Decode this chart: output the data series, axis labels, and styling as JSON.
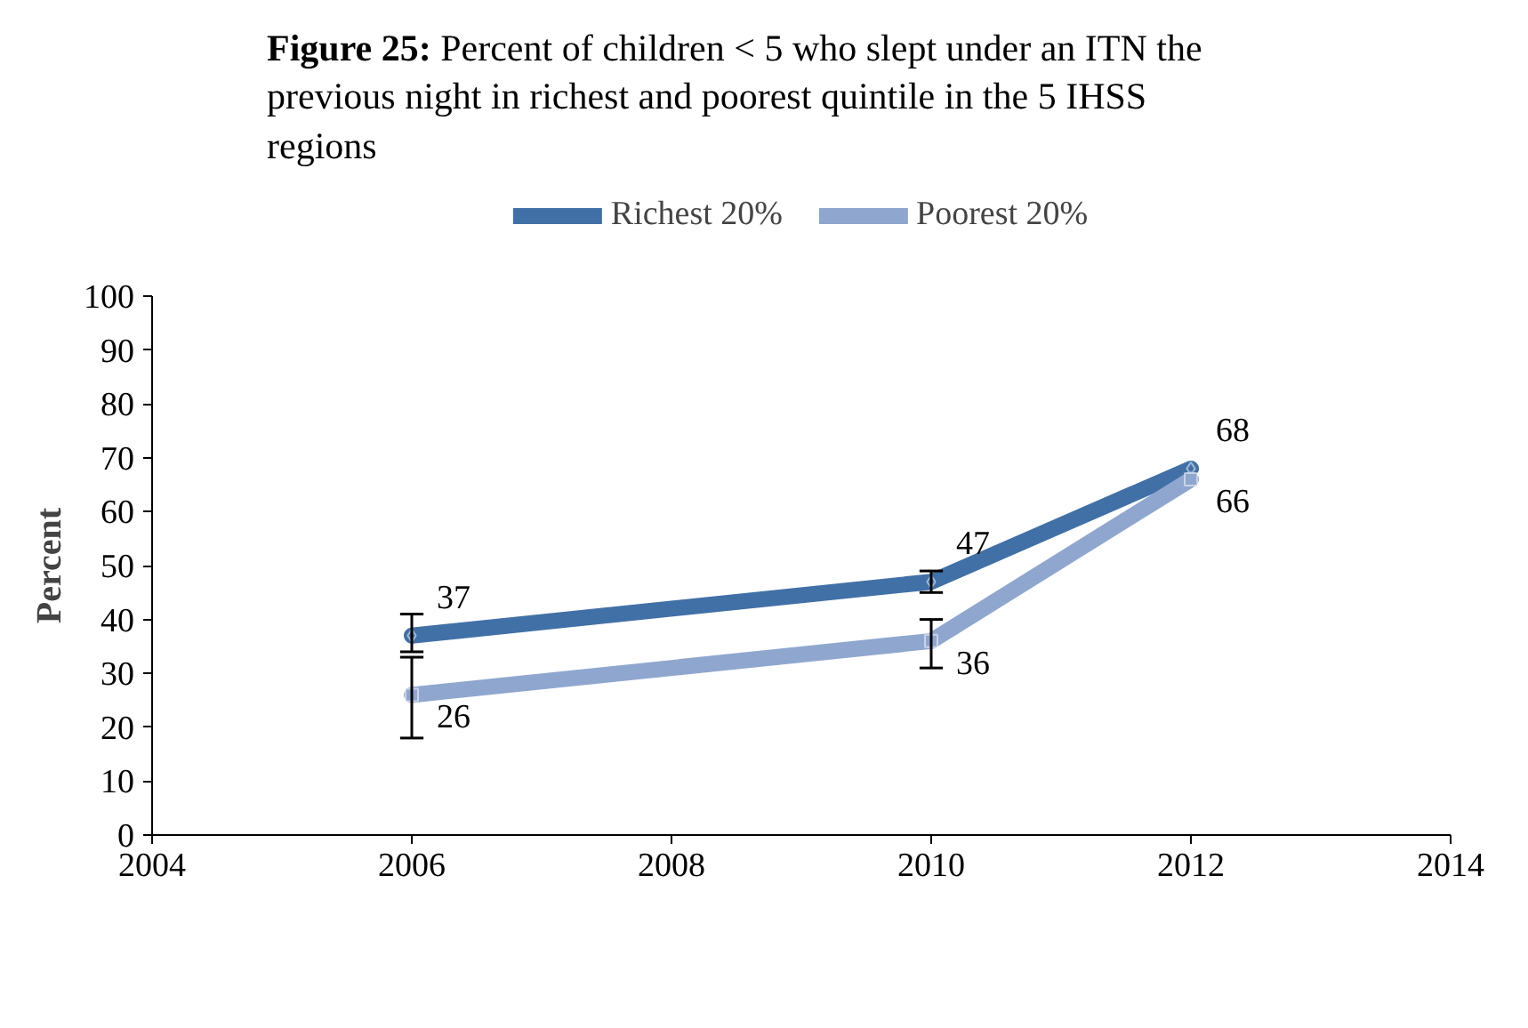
{
  "chart_data": {
    "type": "line",
    "title": "Figure 25: Percent of children < 5 who slept under an ITN the previous night in richest and poorest quintile in the 5 IHSS regions",
    "ylabel": "Percent",
    "x": [
      2006,
      2010,
      2012
    ],
    "series": [
      {
        "name": "Richest 20%",
        "color": "#4170a6",
        "values": [
          37,
          47,
          68
        ],
        "errors": [
          [
            34,
            41
          ],
          [
            45,
            49
          ],
          null
        ],
        "marker": "diamond"
      },
      {
        "name": "Poorest 20%",
        "color": "#8fa7cf",
        "values": [
          26,
          36,
          66
        ],
        "errors": [
          [
            18,
            33
          ],
          [
            31,
            40
          ],
          null
        ],
        "marker": "square"
      }
    ],
    "xlim": [
      2004,
      2014
    ],
    "xticks": [
      2004,
      2006,
      2008,
      2010,
      2012,
      2014
    ],
    "ylim": [
      0,
      100
    ],
    "yticks": [
      0,
      10,
      20,
      30,
      40,
      50,
      60,
      70,
      80,
      90,
      100
    ],
    "data_labels": true,
    "legend": "top",
    "grid": false
  }
}
